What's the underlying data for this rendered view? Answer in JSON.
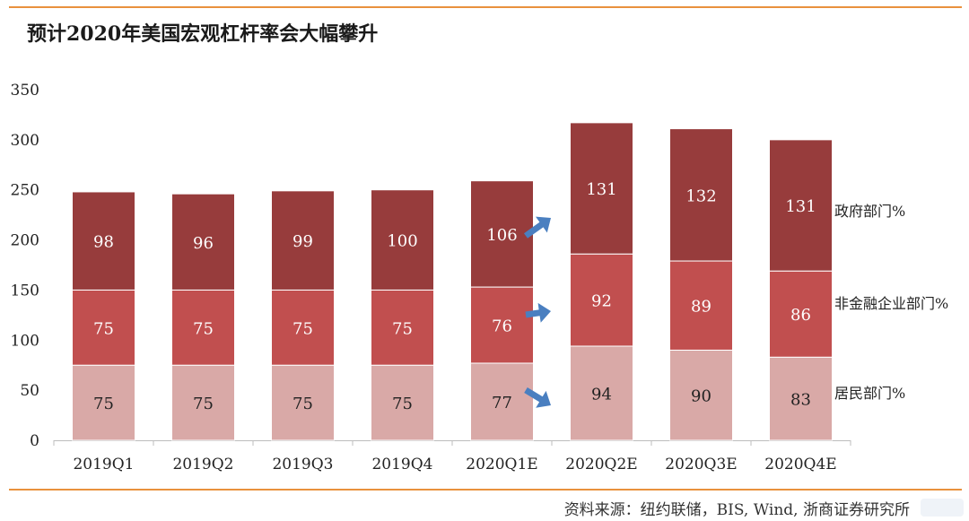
{
  "title": "预计2020年美国宏观杠杆率会大幅攀升",
  "source": "资料来源：纽约联储，BIS, Wind, 浙商证券研究所",
  "colors": {
    "rule": "#e9913d",
    "series": [
      "#d9a9a7",
      "#c14f4f",
      "#973c3c"
    ],
    "arrow": "#4a7fc0"
  },
  "chart_data": {
    "type": "bar",
    "stacked": true,
    "categories": [
      "2019Q1",
      "2019Q2",
      "2019Q3",
      "2019Q4",
      "2020Q1E",
      "2020Q2E",
      "2020Q3E",
      "2020Q4E"
    ],
    "series": [
      {
        "name": "居民部门%",
        "values": [
          75,
          75,
          75,
          75,
          77,
          94,
          90,
          83
        ]
      },
      {
        "name": "非金融企业部门%",
        "values": [
          75,
          75,
          75,
          75,
          76,
          92,
          89,
          86
        ]
      },
      {
        "name": "政府部门%",
        "values": [
          98,
          96,
          99,
          100,
          106,
          131,
          132,
          131
        ]
      }
    ],
    "ylim": [
      0,
      350
    ],
    "yticks": [
      0,
      50,
      100,
      150,
      200,
      250,
      300,
      350
    ],
    "legend_position": "right",
    "grid": false,
    "annotations": [
      "arrows pointing from 2020Q1E to 2020Q2E for each segment"
    ]
  }
}
